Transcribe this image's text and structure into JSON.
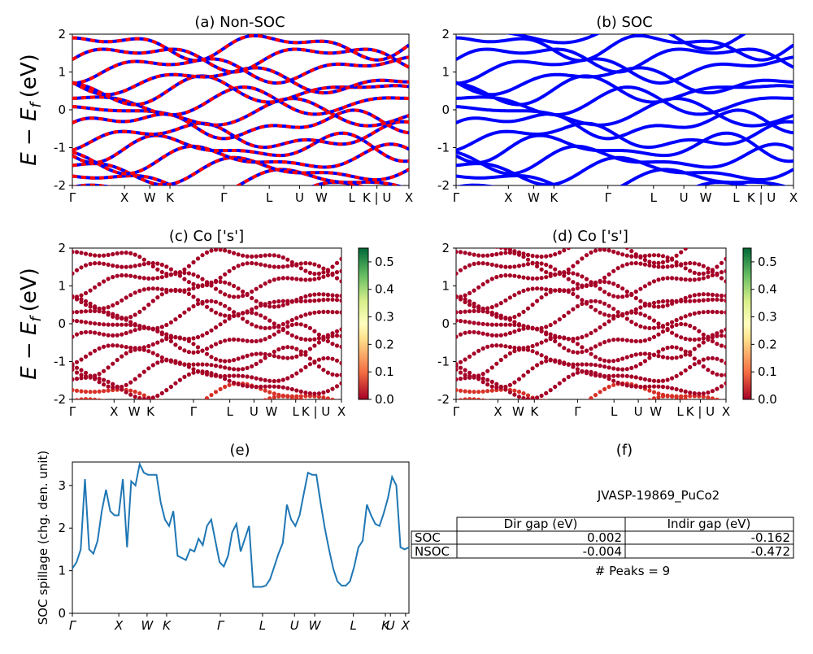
{
  "colors": {
    "nonsoc_a": "#0000ff",
    "nonsoc_b": "#ff0000",
    "soc": "#0000ff",
    "spillage_line": "#1f77b4",
    "cmap_low": "#a50026",
    "cmap_mid": "#ffffbf",
    "cmap_high": "#006837"
  },
  "ylabel": "E − E_f (eV)",
  "ylabel_main": "E − E",
  "ylabel_sub": "f",
  "ylabel_unit": "(eV)",
  "kpath_labels": [
    "Γ",
    "X",
    "W",
    "K",
    "Γ",
    "L",
    "U",
    "W",
    "L",
    "K | U",
    "X"
  ],
  "panels": {
    "a": {
      "title": "(a) Non-SOC"
    },
    "b": {
      "title": "(b) SOC"
    },
    "c": {
      "title": "(c)  Co ['s']"
    },
    "d": {
      "title": "(d) Co ['s']"
    },
    "e": {
      "title": "(e)"
    },
    "f": {
      "title": "(f)"
    }
  },
  "colorbar": {
    "ticks": [
      "0.0",
      "0.1",
      "0.2",
      "0.3",
      "0.4",
      "0.5"
    ],
    "range": [
      0,
      0.55
    ]
  },
  "spillage_axis": {
    "ylabel": "SOC spillage (chg. den. unit)",
    "yticks": [
      "0",
      "1",
      "2",
      "3"
    ],
    "xticks": [
      "Γ",
      "X",
      "W",
      "K",
      "Γ",
      "L",
      "U",
      "W",
      "L",
      "K",
      "U",
      "X"
    ]
  },
  "info": {
    "jid": "JVASP-19869_PuCo2",
    "table": {
      "headers": [
        "Dir gap (eV)",
        "Indir gap (eV)"
      ],
      "rows": [
        {
          "label": "SOC",
          "dir": "0.002",
          "indir": "-0.162"
        },
        {
          "label": "NSOC",
          "dir": "-0.004",
          "indir": "-0.472"
        }
      ]
    },
    "peaks": "# Peaks = 9"
  },
  "chart_data": [
    {
      "type": "line",
      "title": "(a) Non-SOC",
      "ylabel": "E − E_f (eV)",
      "ylim": [
        -2,
        2
      ],
      "yticks": [
        -2,
        -1,
        0,
        1,
        2
      ],
      "xticklabels": [
        "Γ",
        "X",
        "W",
        "K",
        "Γ",
        "L",
        "U",
        "W",
        "L",
        "K | U",
        "X"
      ],
      "series": [
        {
          "values": []
        },
        {
          "values": []
        }
      ]
    },
    {
      "type": "line",
      "title": "(b) SOC",
      "ylim": [
        -2,
        2
      ],
      "yticks": [
        -2,
        -1,
        0,
        1,
        2
      ],
      "xticklabels": [
        "Γ",
        "X",
        "W",
        "K",
        "Γ",
        "L",
        "U",
        "W",
        "L",
        "K | U",
        "X"
      ]
    },
    {
      "type": "scatter",
      "title": "(c)  Co ['s']",
      "ylabel": "E − E_f (eV)",
      "ylim": [
        -2,
        2
      ],
      "colorbar": [
        0,
        0.55
      ],
      "xticklabels": [
        "Γ",
        "X",
        "W",
        "K",
        "Γ",
        "L",
        "U",
        "W",
        "L",
        "K | U",
        "X"
      ]
    },
    {
      "type": "scatter",
      "title": "(d) Co ['s']",
      "ylim": [
        -2,
        2
      ],
      "colorbar": [
        0,
        0.55
      ],
      "xticklabels": [
        "Γ",
        "X",
        "W",
        "K",
        "Γ",
        "L",
        "U",
        "W",
        "L",
        "K | U",
        "X"
      ]
    },
    {
      "type": "line",
      "title": "(e)",
      "ylabel": "SOC spillage (chg. den. unit)",
      "ylim": [
        0,
        3.55
      ],
      "xticklabels": [
        "Γ",
        "X",
        "W",
        "K",
        "Γ",
        "L",
        "U",
        "W",
        "L",
        "K",
        "U",
        "X"
      ],
      "x": [
        0,
        1,
        2,
        3,
        4,
        5,
        6,
        7,
        8,
        9,
        10,
        11,
        12,
        13,
        14,
        15,
        16,
        17,
        18,
        19,
        20,
        21,
        22,
        23,
        24,
        25,
        26,
        27,
        28,
        29,
        30,
        31,
        32,
        33,
        34,
        35,
        36,
        37,
        38,
        39,
        40,
        41,
        42,
        43,
        44,
        45,
        46,
        47,
        48,
        49,
        50,
        51,
        52,
        53,
        54,
        55,
        56,
        57,
        58,
        59,
        60,
        61,
        62,
        63,
        64,
        65,
        66,
        67,
        68,
        69,
        70,
        71,
        72,
        73,
        74,
        75,
        76,
        77,
        78,
        79,
        80
      ],
      "values": [
        1.05,
        1.2,
        1.5,
        3.15,
        1.5,
        1.4,
        1.7,
        2.4,
        2.9,
        2.4,
        2.3,
        2.3,
        3.15,
        1.55,
        3.1,
        3.0,
        3.5,
        3.3,
        3.25,
        3.25,
        3.25,
        2.6,
        2.2,
        2.05,
        2.4,
        1.35,
        1.3,
        1.25,
        1.5,
        1.45,
        1.75,
        1.6,
        2.05,
        2.2,
        1.7,
        1.2,
        1.1,
        1.35,
        1.9,
        2.1,
        1.45,
        1.75,
        2.05,
        0.62,
        0.62,
        0.62,
        0.65,
        0.8,
        1.1,
        1.4,
        1.65,
        2.55,
        2.2,
        2.05,
        2.3,
        2.8,
        3.3,
        3.25,
        3.25,
        2.6,
        2.0,
        1.5,
        1.05,
        0.75,
        0.65,
        0.65,
        0.75,
        1.1,
        1.55,
        1.7,
        2.55,
        2.3,
        2.1,
        2.05,
        2.35,
        2.7,
        3.2,
        3.0,
        1.55,
        1.5,
        1.55
      ]
    }
  ]
}
